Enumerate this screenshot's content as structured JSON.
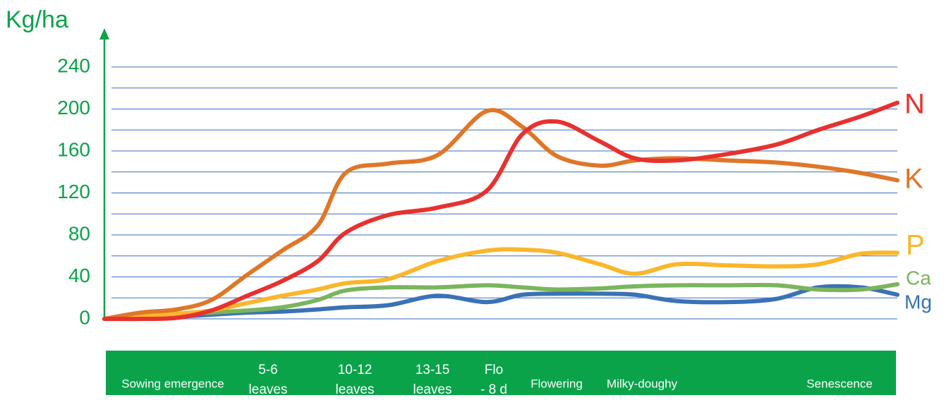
{
  "chart_data": {
    "type": "line",
    "y_label": "Kg/ha",
    "ylim": [
      0,
      240
    ],
    "yticks": [
      0,
      40,
      80,
      120,
      160,
      200,
      240
    ],
    "minor_yticks": [
      20,
      60,
      100,
      140,
      180,
      220
    ],
    "xlim": [
      0,
      100
    ],
    "x": [
      0,
      4.6,
      9.1,
      13.5,
      18.0,
      22.4,
      26.9,
      30.4,
      35.8,
      42.0,
      48.2,
      52.7,
      57.1,
      62.5,
      66.9,
      72.2,
      78.5,
      84.7,
      90.0,
      95.4,
      100
    ],
    "series": [
      {
        "name": "N",
        "color": "#e8312f",
        "values": [
          0,
          0,
          1,
          8,
          22,
          36,
          55,
          82,
          99,
          106,
          122,
          176,
          188,
          169,
          153,
          151,
          157,
          166,
          180,
          193,
          206
        ]
      },
      {
        "name": "K",
        "color": "#e07628",
        "values": [
          0,
          6,
          9,
          18,
          42,
          65,
          89,
          139,
          148,
          156,
          198,
          183,
          155,
          146,
          151,
          153,
          151,
          149,
          145,
          139,
          132
        ]
      },
      {
        "name": "P",
        "color": "#fbb62b",
        "values": [
          0,
          3,
          5,
          8,
          15,
          22,
          28,
          34,
          38,
          55,
          65,
          66,
          63,
          52,
          43,
          52,
          51,
          50,
          52,
          62,
          63
        ]
      },
      {
        "name": "Ca",
        "color": "#7ab55c",
        "values": [
          0,
          2,
          4,
          6,
          8,
          11,
          18,
          27,
          30,
          30,
          32,
          30,
          28,
          29,
          31,
          32,
          32,
          32,
          28,
          28,
          33
        ]
      },
      {
        "name": "Mg",
        "color": "#3a72b5",
        "values": [
          0,
          1,
          2,
          4,
          6,
          7,
          9,
          11,
          13,
          22,
          16,
          23,
          24,
          24,
          23,
          17,
          16,
          19,
          30,
          30,
          23
        ]
      }
    ],
    "stages": [
      [
        "Sowing emergence"
      ],
      [
        "5-6",
        "leaves"
      ],
      [
        "10-12",
        "leaves"
      ],
      [
        "13-15",
        "leaves"
      ],
      [
        "Flo",
        "- 8 d"
      ],
      [
        "Flowering"
      ],
      [
        "Milky-doughy"
      ],
      [
        "Senescence"
      ]
    ]
  }
}
